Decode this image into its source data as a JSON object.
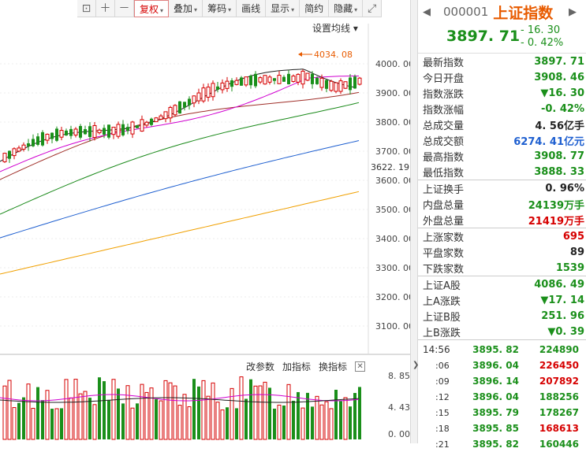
{
  "toolbar": {
    "items": [
      "复权",
      "叠加",
      "筹码",
      "画线",
      "显示",
      "简约",
      "隐藏"
    ],
    "dropdown_marker": "▾"
  },
  "chart": {
    "ma_setting_label": "设置均线",
    "high_annotation": "4034. 08",
    "current_price_tag": "3622. 19",
    "y_ticks": [
      "4000. 00",
      "3900. 00",
      "3800. 00",
      "3700. 00",
      "3600. 00",
      "3500. 00",
      "3400. 00",
      "3300. 00",
      "3200. 00",
      "3100. 00"
    ],
    "colors": {
      "up": "#d60000",
      "down": "#1a8f1a",
      "ma5": "#222222",
      "ma10": "#d000d0",
      "ma20": "#a0302a",
      "ma60": "#1a8a1a",
      "ma120": "#1e5fd0",
      "ma250": "#f0a000"
    }
  },
  "volume": {
    "buttons": [
      "改参数",
      "加指标",
      "换指标"
    ],
    "close_label": "✕",
    "ticks": [
      "8. 85",
      "4. 43",
      "0. 00"
    ]
  },
  "stock": {
    "code": "000001",
    "name": "上证指数",
    "price": "3897. 71",
    "change": "- 16. 30",
    "change_pct": "- 0. 42%"
  },
  "stats": [
    [
      {
        "label": "最新指数",
        "value": "3897. 71",
        "color": "green"
      },
      {
        "label": "今日开盘",
        "value": "3908. 46",
        "color": "green"
      },
      {
        "label": "指数涨跌",
        "value": "▼16. 30",
        "color": "green"
      },
      {
        "label": "指数涨幅",
        "value": "-0. 42%",
        "color": "green"
      },
      {
        "label": "总成交量",
        "value": "4. 56亿手",
        "color": "black"
      },
      {
        "label": "总成交额",
        "value": "6274. 41亿元",
        "color": "blue"
      },
      {
        "label": "最高指数",
        "value": "3908. 77",
        "color": "green"
      },
      {
        "label": "最低指数",
        "value": "3888. 33",
        "color": "green"
      }
    ],
    [
      {
        "label": "上证换手",
        "value": "0. 96%",
        "color": "black"
      },
      {
        "label": "内盘总量",
        "value": "24139万手",
        "color": "green"
      },
      {
        "label": "外盘总量",
        "value": "21419万手",
        "color": "red"
      }
    ],
    [
      {
        "label": "上涨家数",
        "value": "695",
        "color": "red"
      },
      {
        "label": "平盘家数",
        "value": "89",
        "color": "black"
      },
      {
        "label": "下跌家数",
        "value": "1539",
        "color": "green"
      }
    ],
    [
      {
        "label": "上证A股",
        "value": "4086. 49",
        "color": "green"
      },
      {
        "label": "上A涨跌",
        "value": "▼17. 14",
        "color": "green"
      },
      {
        "label": "上证B股",
        "value": "251. 96",
        "color": "green"
      },
      {
        "label": "上B涨跌",
        "value": "▼0. 39",
        "color": "green"
      }
    ]
  ],
  "ticks": [
    {
      "time": "14:56",
      "price": "3895. 82",
      "volume": "224890",
      "vcolor": "green"
    },
    {
      "time": ":06",
      "price": "3896. 04",
      "volume": "226450",
      "vcolor": "red"
    },
    {
      "time": ":09",
      "price": "3896. 14",
      "volume": "207892",
      "vcolor": "red"
    },
    {
      "time": ":12",
      "price": "3896. 04",
      "volume": "188256",
      "vcolor": "green"
    },
    {
      "time": ":15",
      "price": "3895. 79",
      "volume": "178267",
      "vcolor": "green"
    },
    {
      "time": ":18",
      "price": "3895. 85",
      "volume": "168613",
      "vcolor": "red"
    },
    {
      "time": ":21",
      "price": "3895. 82",
      "volume": "160446",
      "vcolor": "green"
    }
  ]
}
